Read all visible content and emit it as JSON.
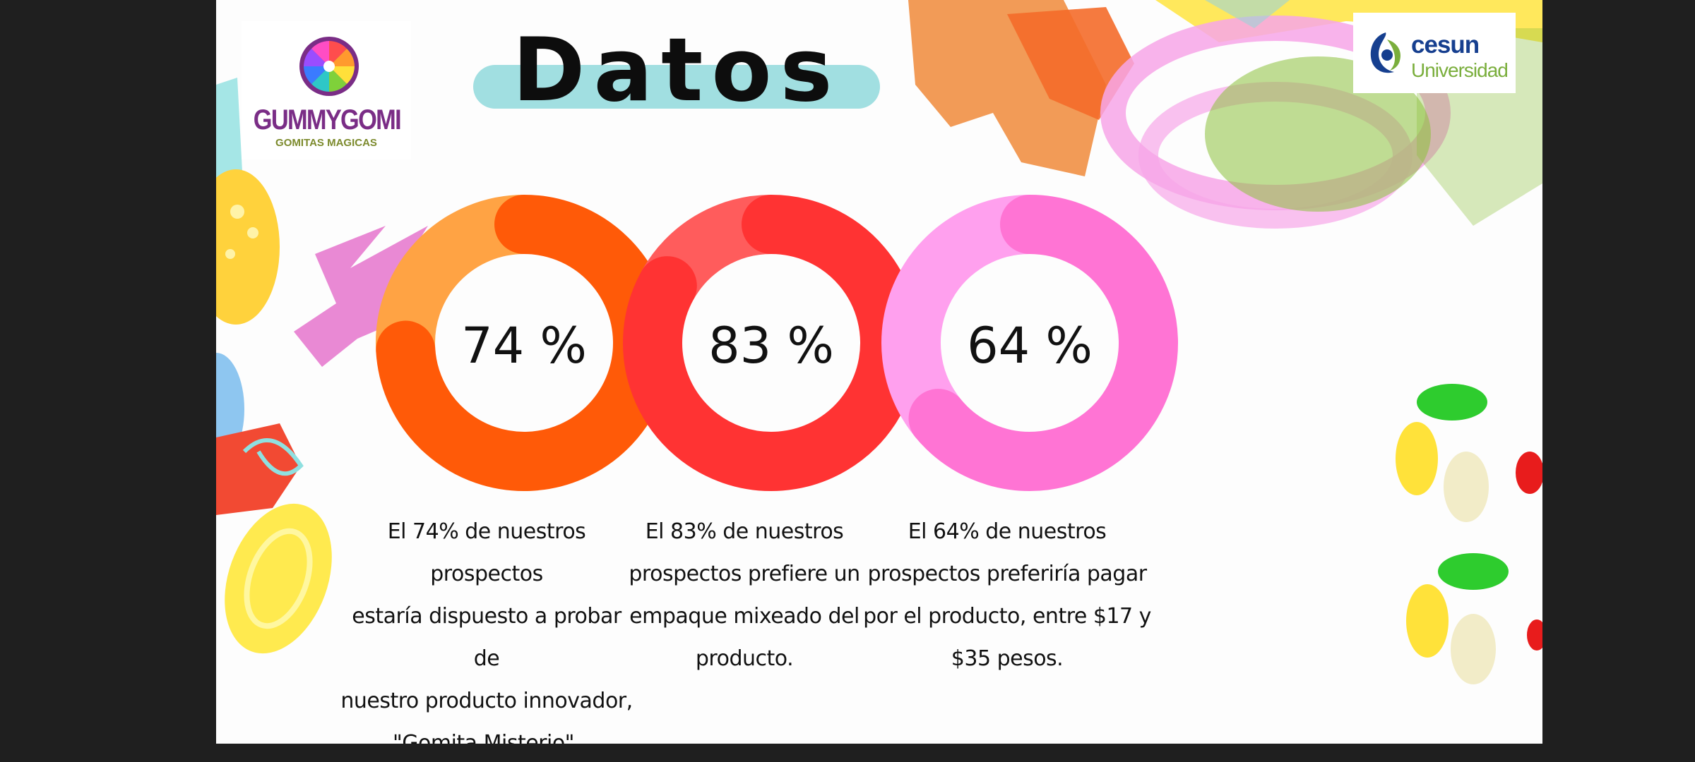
{
  "title": "Datos",
  "logo_left": {
    "name": "GUMMYGOMI",
    "tagline": "GOMITAS MAGICAS"
  },
  "logo_right": {
    "name": "cesun",
    "subtitle": "Universidad"
  },
  "colors": {
    "orange_dark": "#ff5a08",
    "orange_light": "#ffa344",
    "red_dark": "#ff3333",
    "red_light": "#ff5c5c",
    "pink_dark": "#ff74d4",
    "pink_light": "#ffa0ee",
    "title_pill": "#a1dfe1"
  },
  "chart_data": [
    {
      "type": "pie",
      "variant": "donut",
      "label": "74 %",
      "values": [
        74,
        26
      ],
      "caption": [
        "El 74% de nuestros prospectos",
        "estaría dispuesto a probar de",
        "nuestro producto innovador,",
        "\"Gomita Misterio\"."
      ]
    },
    {
      "type": "pie",
      "variant": "donut",
      "label": "83 %",
      "values": [
        83,
        17
      ],
      "caption": [
        "El 83% de nuestros",
        "prospectos prefiere un",
        "empaque mixeado  del",
        "producto."
      ]
    },
    {
      "type": "pie",
      "variant": "donut",
      "label": "64 %",
      "values": [
        64,
        36
      ],
      "caption": [
        "El 64% de nuestros",
        "prospectos preferiría pagar",
        "por el producto, entre $17 y",
        "$35 pesos."
      ]
    }
  ]
}
